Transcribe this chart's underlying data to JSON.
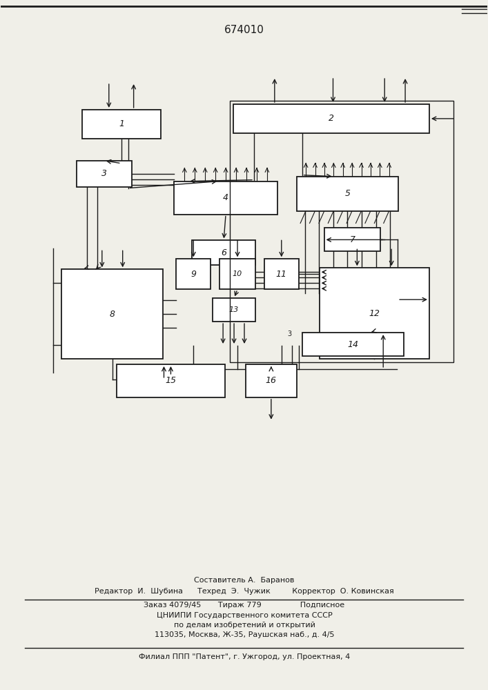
{
  "title": "674010",
  "bg_color": "#f0efe8",
  "line_color": "#1a1a1a",
  "footer": {
    "line1": "Составитель А.  Баранов",
    "line2": "Редактор  И.  Шубина      Техред  Э.  Чужик         Корректор  О. Ковинская",
    "line3": "Заказ 4079/45       Тираж 779                Подписное",
    "line4": "ЦНИИПИ Государственного комитета СССР",
    "line5": "по делам изобретений и открытий",
    "line6": "113035, Москва, Ж-35, Раушская наб., д. 4/5",
    "line7": "Филиал ППП \"Патент\", г. Ужгород, ул. Проектная, 4"
  }
}
